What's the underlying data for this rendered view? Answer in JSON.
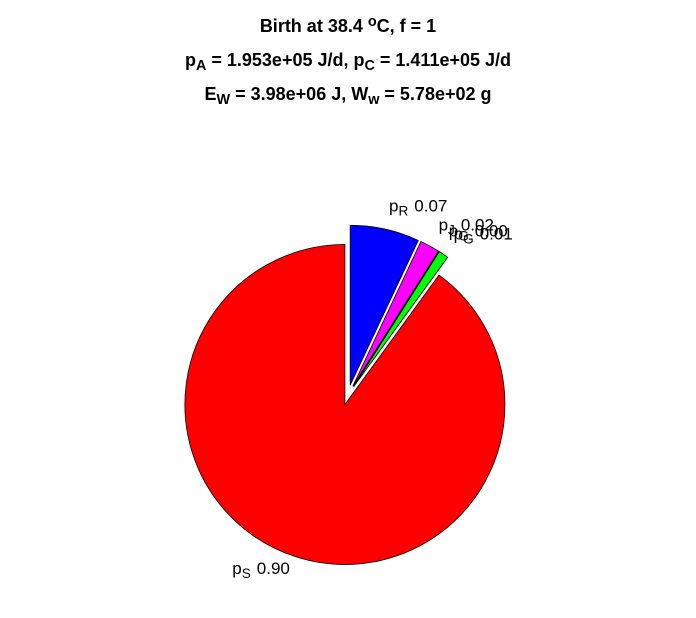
{
  "chart_data": {
    "type": "pie",
    "title": [
      [
        "Birth at 38.4 ",
        {
          "sup": "o"
        },
        "C, f = 1"
      ],
      [
        "p",
        {
          "sub": "A"
        },
        " = 1.953e+05 J/d, p",
        {
          "sub": "C"
        },
        " = 1.411e+05 J/d"
      ],
      [
        "E",
        {
          "sub": "W"
        },
        " = 3.98e+06 J, W",
        {
          "sub": "w"
        },
        " = 5.78e+02 g"
      ]
    ],
    "categories": [
      [
        "p",
        {
          "sub": "R"
        }
      ],
      [
        "p",
        {
          "sub": "J"
        }
      ],
      [
        "p",
        {
          "sub": "G"
        }
      ],
      [
        "p",
        {
          "sub": "G"
        }
      ],
      [
        "p",
        {
          "sub": "S"
        }
      ]
    ],
    "values": [
      0.07,
      0.02,
      0.0,
      0.01,
      0.9
    ],
    "value_labels": [
      "0.07",
      "0.02",
      "0.00",
      "0.01",
      "0.90"
    ],
    "colors": [
      "#0000ff",
      "#ff00ff",
      "#000000",
      "#00ff00",
      "#ff0000"
    ]
  }
}
